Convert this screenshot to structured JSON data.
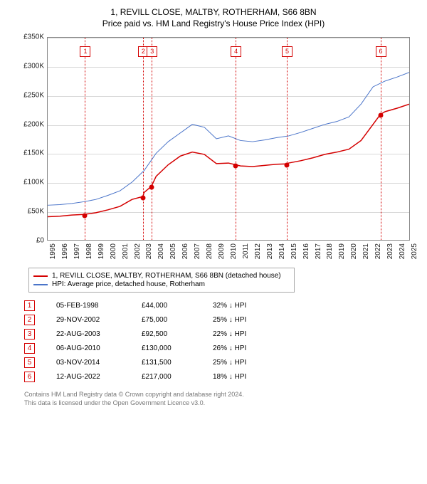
{
  "title_line1": "1, REVILL CLOSE, MALTBY, ROTHERHAM, S66 8BN",
  "title_line2": "Price paid vs. HM Land Registry's House Price Index (HPI)",
  "chart": {
    "type": "line",
    "xmin": 1995,
    "xmax": 2025,
    "ymin": 0,
    "ymax": 350000,
    "ytick_step": 50000,
    "ytick_labels": [
      "£0",
      "£50K",
      "£100K",
      "£150K",
      "£200K",
      "£250K",
      "£300K",
      "£350K"
    ],
    "xticks": [
      1995,
      1996,
      1997,
      1998,
      1999,
      2000,
      2001,
      2002,
      2003,
      2004,
      2005,
      2006,
      2007,
      2008,
      2009,
      2010,
      2011,
      2012,
      2013,
      2014,
      2015,
      2016,
      2017,
      2018,
      2019,
      2020,
      2021,
      2022,
      2023,
      2024,
      2025
    ],
    "grid_color": "#d8d8d8",
    "background_color": "#ffffff",
    "series_red": {
      "label": "1, REVILL CLOSE, MALTBY, ROTHERHAM, S66 8BN (detached house)",
      "color": "#d40000",
      "line_width": 1.5,
      "points": [
        [
          1995,
          40000
        ],
        [
          1996,
          41000
        ],
        [
          1997,
          43000
        ],
        [
          1998,
          44000
        ],
        [
          1999,
          47000
        ],
        [
          2000,
          52000
        ],
        [
          2001,
          58000
        ],
        [
          2002,
          70000
        ],
        [
          2002.9,
          75000
        ],
        [
          2003,
          82000
        ],
        [
          2003.6,
          92500
        ],
        [
          2004,
          110000
        ],
        [
          2005,
          130000
        ],
        [
          2006,
          145000
        ],
        [
          2007,
          152000
        ],
        [
          2008,
          148000
        ],
        [
          2009,
          132000
        ],
        [
          2010,
          133000
        ],
        [
          2010.6,
          130000
        ],
        [
          2011,
          128000
        ],
        [
          2012,
          127000
        ],
        [
          2013,
          129000
        ],
        [
          2014,
          131000
        ],
        [
          2014.85,
          131500
        ],
        [
          2015,
          133000
        ],
        [
          2016,
          137000
        ],
        [
          2017,
          142000
        ],
        [
          2018,
          148000
        ],
        [
          2019,
          152000
        ],
        [
          2020,
          157000
        ],
        [
          2021,
          172000
        ],
        [
          2022,
          200000
        ],
        [
          2022.6,
          217000
        ],
        [
          2023,
          222000
        ],
        [
          2024,
          228000
        ],
        [
          2025,
          235000
        ]
      ],
      "sale_dots": [
        {
          "x": 1998.1,
          "y": 44000
        },
        {
          "x": 2002.91,
          "y": 75000
        },
        {
          "x": 2003.64,
          "y": 92500
        },
        {
          "x": 2010.6,
          "y": 130000
        },
        {
          "x": 2014.84,
          "y": 131500
        },
        {
          "x": 2022.61,
          "y": 217000
        }
      ]
    },
    "series_blue": {
      "label": "HPI: Average price, detached house, Rotherham",
      "color": "#4a74c9",
      "line_width": 1,
      "points": [
        [
          1995,
          60000
        ],
        [
          1996,
          61000
        ],
        [
          1997,
          63000
        ],
        [
          1998,
          66000
        ],
        [
          1999,
          70000
        ],
        [
          2000,
          77000
        ],
        [
          2001,
          85000
        ],
        [
          2002,
          100000
        ],
        [
          2003,
          120000
        ],
        [
          2004,
          150000
        ],
        [
          2005,
          170000
        ],
        [
          2006,
          185000
        ],
        [
          2007,
          200000
        ],
        [
          2008,
          195000
        ],
        [
          2009,
          175000
        ],
        [
          2010,
          180000
        ],
        [
          2011,
          172000
        ],
        [
          2012,
          170000
        ],
        [
          2013,
          173000
        ],
        [
          2014,
          177000
        ],
        [
          2015,
          180000
        ],
        [
          2016,
          186000
        ],
        [
          2017,
          193000
        ],
        [
          2018,
          200000
        ],
        [
          2019,
          205000
        ],
        [
          2020,
          213000
        ],
        [
          2021,
          235000
        ],
        [
          2022,
          265000
        ],
        [
          2023,
          275000
        ],
        [
          2024,
          282000
        ],
        [
          2025,
          290000
        ]
      ]
    },
    "markers": [
      {
        "num": "1",
        "x": 1998.1
      },
      {
        "num": "2",
        "x": 2002.91
      },
      {
        "num": "3",
        "x": 2003.64
      },
      {
        "num": "4",
        "x": 2010.6
      },
      {
        "num": "5",
        "x": 2014.84
      },
      {
        "num": "6",
        "x": 2022.61
      }
    ]
  },
  "legend": {
    "series1": "1, REVILL CLOSE, MALTBY, ROTHERHAM, S66 8BN (detached house)",
    "series2": "HPI: Average price, detached house, Rotherham"
  },
  "sales": [
    {
      "num": "1",
      "date": "05-FEB-1998",
      "price": "£44,000",
      "diff": "32% ↓ HPI"
    },
    {
      "num": "2",
      "date": "29-NOV-2002",
      "price": "£75,000",
      "diff": "25% ↓ HPI"
    },
    {
      "num": "3",
      "date": "22-AUG-2003",
      "price": "£92,500",
      "diff": "22% ↓ HPI"
    },
    {
      "num": "4",
      "date": "06-AUG-2010",
      "price": "£130,000",
      "diff": "26% ↓ HPI"
    },
    {
      "num": "5",
      "date": "03-NOV-2014",
      "price": "£131,500",
      "diff": "25% ↓ HPI"
    },
    {
      "num": "6",
      "date": "12-AUG-2022",
      "price": "£217,000",
      "diff": "18% ↓ HPI"
    }
  ],
  "footer_line1": "Contains HM Land Registry data © Crown copyright and database right 2024.",
  "footer_line2": "This data is licensed under the Open Government Licence v3.0."
}
